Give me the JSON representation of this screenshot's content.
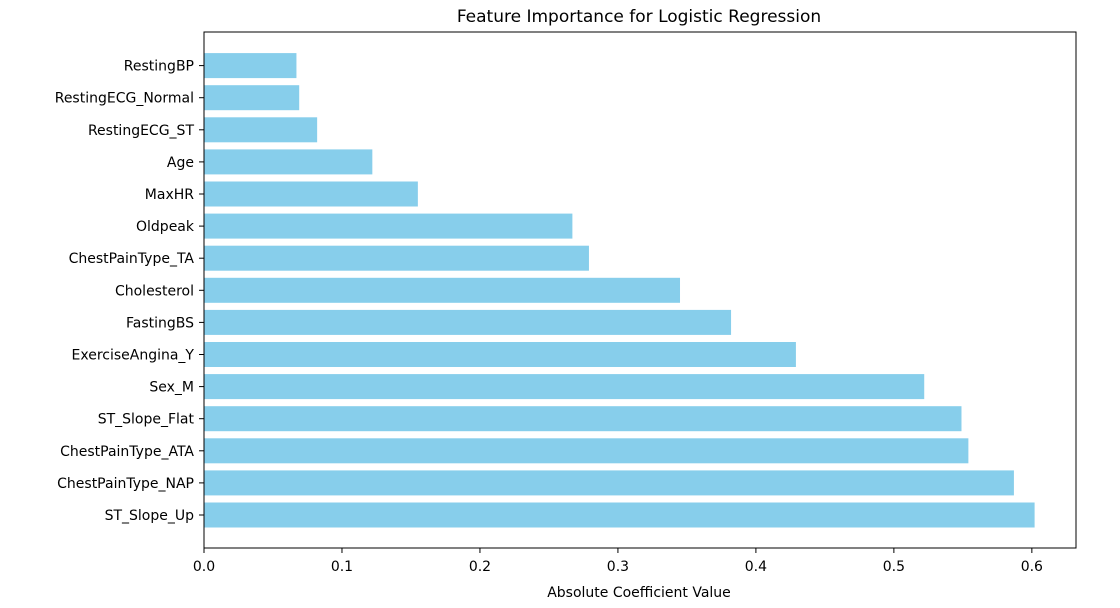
{
  "chart_data": {
    "type": "bar",
    "orientation": "horizontal",
    "title": "Feature Importance for Logistic Regression",
    "xlabel": "Absolute Coefficient Value",
    "ylabel": "",
    "xlim": [
      0,
      0.632
    ],
    "xticks": [
      0.0,
      0.1,
      0.2,
      0.3,
      0.4,
      0.5,
      0.6
    ],
    "xtick_labels": [
      "0.0",
      "0.1",
      "0.2",
      "0.3",
      "0.4",
      "0.5",
      "0.6"
    ],
    "grid": false,
    "bar_color": "#87ceeb",
    "categories": [
      "ST_Slope_Up",
      "ChestPainType_NAP",
      "ChestPainType_ATA",
      "ST_Slope_Flat",
      "Sex_M",
      "ExerciseAngina_Y",
      "FastingBS",
      "Cholesterol",
      "ChestPainType_TA",
      "Oldpeak",
      "MaxHR",
      "Age",
      "RestingECG_ST",
      "RestingECG_Normal",
      "RestingBP"
    ],
    "values": [
      0.602,
      0.587,
      0.554,
      0.549,
      0.522,
      0.429,
      0.382,
      0.345,
      0.279,
      0.267,
      0.155,
      0.122,
      0.082,
      0.069,
      0.067
    ]
  }
}
